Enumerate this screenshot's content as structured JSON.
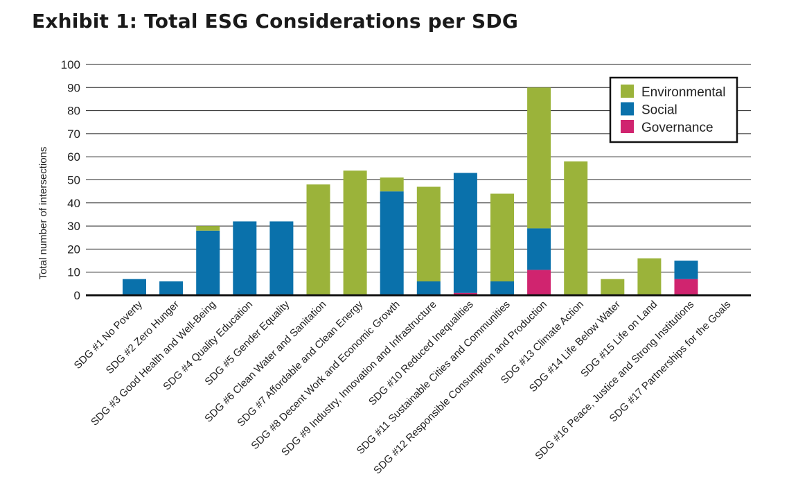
{
  "chart_data": {
    "type": "bar",
    "stacked": true,
    "title": "Exhibit 1: Total ESG Considerations per SDG",
    "xlabel": "",
    "ylabel": "Total number of intersections",
    "ylim": [
      0,
      100
    ],
    "yticks": [
      0,
      10,
      20,
      30,
      40,
      50,
      60,
      70,
      80,
      90,
      100
    ],
    "grid": true,
    "legend_position": "top-right",
    "categories": [
      "SDG #1 No Poverty",
      "SDG #2 Zero Hunger",
      "SDG #3 Good Health and Well-Being",
      "SDG #4 Quality Education",
      "SDG #5 Gender Equality",
      "SDG #6 Clean Water and Sanitation",
      "SDG #7 Affordable and Clean Energy",
      "SDG #8 Decent Work and Economic Growth",
      "SDG #9 Industry, Innovation and Infrastructure",
      "SDG #10 Reduced Inequalities",
      "SDG #11 Sustainable Cities and Communities",
      "SDG #12 Responsible Consumption and Production",
      "SDG #13 Climate Action",
      "SDG #14 Life Below Water",
      "SDG #15 Life on Land",
      "SDG #16 Peace, Justice and Strong Institutions",
      "SDG #17 Partnerships for the Goals"
    ],
    "series": [
      {
        "name": "Governance",
        "color": "#d0246f",
        "values": [
          0,
          0,
          0,
          0,
          0,
          0,
          0,
          0,
          0,
          1,
          0,
          11,
          0,
          0,
          0,
          7,
          0
        ]
      },
      {
        "name": "Social",
        "color": "#0a71ab",
        "values": [
          7,
          6,
          28,
          32,
          32,
          0,
          0,
          45,
          6,
          52,
          6,
          18,
          0,
          0,
          0,
          8,
          0
        ]
      },
      {
        "name": "Environmental",
        "color": "#9bb33a",
        "values": [
          0,
          0,
          2,
          0,
          0,
          48,
          54,
          6,
          41,
          0,
          38,
          61,
          58,
          7,
          16,
          0,
          0
        ]
      }
    ],
    "legend_order": [
      "Environmental",
      "Social",
      "Governance"
    ]
  }
}
